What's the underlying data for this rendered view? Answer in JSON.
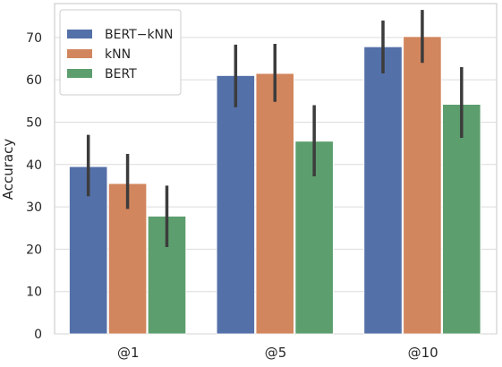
{
  "chart_data": {
    "type": "bar",
    "title": "",
    "xlabel": "",
    "ylabel": "Accuracy",
    "categories": [
      "@1",
      "@5",
      "@10"
    ],
    "ylim": [
      0,
      78
    ],
    "yticks": [
      0,
      10,
      20,
      30,
      40,
      50,
      60,
      70
    ],
    "grid": true,
    "legend": {
      "placement": "top-left"
    },
    "series": [
      {
        "name": "BERT−kNN",
        "color": "#5470a8",
        "values": [
          39.5,
          61.0,
          67.8
        ],
        "err_low": [
          32.5,
          53.5,
          61.5
        ],
        "err_high": [
          47.0,
          68.3,
          74.0
        ]
      },
      {
        "name": "kNN",
        "color": "#d2865e",
        "values": [
          35.5,
          61.5,
          70.2
        ],
        "err_low": [
          29.5,
          54.8,
          64.0
        ],
        "err_high": [
          42.5,
          68.5,
          76.5
        ]
      },
      {
        "name": "BERT",
        "color": "#5d9e6e",
        "values": [
          27.8,
          45.5,
          54.2
        ],
        "err_low": [
          20.5,
          37.2,
          46.3
        ],
        "err_high": [
          35.0,
          54.0,
          63.0
        ]
      }
    ]
  }
}
